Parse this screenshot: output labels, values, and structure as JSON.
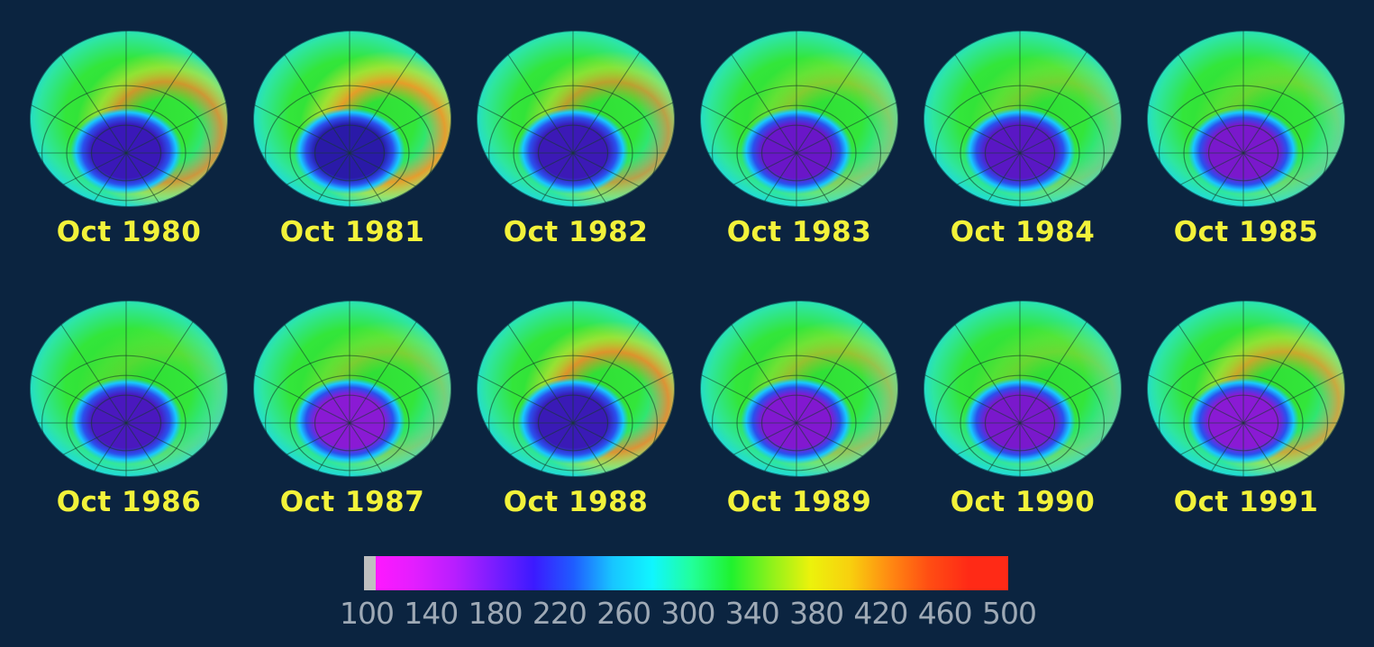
{
  "panels": [
    {
      "label": "Oct 1980",
      "hole": "#3a18b8",
      "ring": "#e88a2a",
      "ringAmt": 0.85
    },
    {
      "label": "Oct 1981",
      "hole": "#2a1aa8",
      "ring": "#ee9a28",
      "ringAmt": 0.95
    },
    {
      "label": "Oct 1982",
      "hole": "#3c19b6",
      "ring": "#e88a2a",
      "ringAmt": 0.75
    },
    {
      "label": "Oct 1983",
      "hole": "#6a16c8",
      "ring": "#e8b32a",
      "ringAmt": 0.45
    },
    {
      "label": "Oct 1984",
      "hole": "#5a17c4",
      "ring": "#e8b32a",
      "ringAmt": 0.35
    },
    {
      "label": "Oct 1985",
      "hole": "#7a18cc",
      "ring": "#e8c02a",
      "ringAmt": 0.3
    },
    {
      "label": "Oct 1986",
      "hole": "#4a18be",
      "ring": "#e8c02a",
      "ringAmt": 0.2
    },
    {
      "label": "Oct 1987",
      "hole": "#8a1ad4",
      "ring": "#e8b32a",
      "ringAmt": 0.4
    },
    {
      "label": "Oct 1988",
      "hole": "#3a1ab6",
      "ring": "#ef8a2a",
      "ringAmt": 0.9
    },
    {
      "label": "Oct 1989",
      "hole": "#8218d0",
      "ring": "#e8a82a",
      "ringAmt": 0.55
    },
    {
      "label": "Oct 1990",
      "hole": "#7a18cc",
      "ring": "#e8c02a",
      "ringAmt": 0.3
    },
    {
      "label": "Oct 1991",
      "hole": "#8a1ad4",
      "ring": "#ee9a28",
      "ringAmt": 0.8
    }
  ],
  "scale": {
    "ticks": [
      "100",
      "140",
      "180",
      "220",
      "260",
      "300",
      "340",
      "380",
      "420",
      "460",
      "500"
    ],
    "stops": [
      "#bfbfbf",
      "#ff18ff",
      "#e21eff",
      "#b81eff",
      "#7a1dff",
      "#3c1aff",
      "#1f5cff",
      "#18c6ff",
      "#10f6ff",
      "#22ff9a",
      "#1ff22e",
      "#8df21b",
      "#ecf20c",
      "#f8d00e",
      "#ff8a12",
      "#ff4d13",
      "#ff2a16"
    ]
  }
}
